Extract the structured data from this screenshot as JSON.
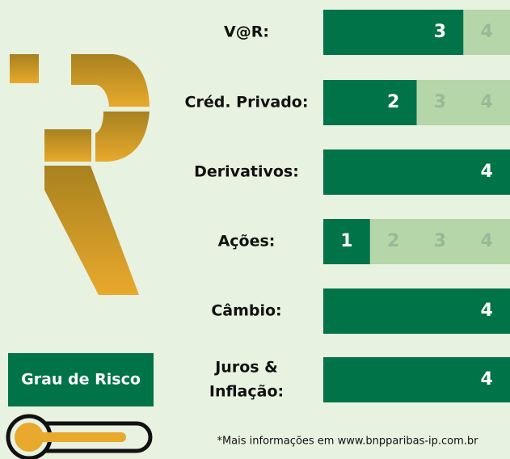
{
  "badge": "Grau de Risco",
  "footnote": "*Mais informações em www.bnpparibas-ip.com.br",
  "rows": [
    {
      "label": [
        "V@R:"
      ],
      "value": 3,
      "remaining": [
        4
      ]
    },
    {
      "label": [
        "Créd. Privado:"
      ],
      "value": 2,
      "remaining": [
        3,
        4
      ]
    },
    {
      "label": [
        "Derivativos:"
      ],
      "value": 4,
      "remaining": []
    },
    {
      "label": [
        "Ações:"
      ],
      "value": 1,
      "remaining": [
        2,
        3,
        4
      ]
    },
    {
      "label": [
        "Câmbio:"
      ],
      "value": 4,
      "remaining": []
    },
    {
      "label": [
        "Juros &",
        "Inflação:"
      ],
      "value": 4,
      "remaining": []
    }
  ]
}
